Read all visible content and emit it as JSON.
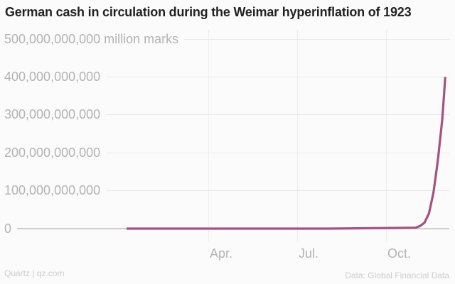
{
  "title": "German cash in circulation during the Weimar hyperinflation of 1923",
  "footer": {
    "left": "Quartz | qz.com",
    "right": "Data: Global Financial Data"
  },
  "colors": {
    "background": "#fbfbfb",
    "title": "#222222",
    "axis_label": "#b3b3b3",
    "gridline": "#e9e9e9",
    "vertical_gridline": "#eeeeee",
    "zero_line": "#cdcdcd",
    "series_line": "#a4527e",
    "footer_text": "#cccccc"
  },
  "chart_data": {
    "type": "line",
    "title": "German cash in circulation during the Weimar hyperinflation of 1923",
    "unit": "million marks",
    "x_range": "Jan 1923 - Dec 1923",
    "grid": true,
    "legend": "none",
    "y_axis": {
      "min": 0,
      "max": 500000000000,
      "tick_labels": [
        "500,000,000,000 million marks",
        "400,000,000,000",
        "300,000,000,000",
        "200,000,000,000",
        "100,000,000,000",
        "0"
      ],
      "tick_values": [
        500000000000,
        400000000000,
        300000000000,
        200000000000,
        100000000000,
        0
      ]
    },
    "x_axis": {
      "tick_labels": [
        "Apr.",
        "Jul.",
        "Oct."
      ],
      "tick_month_index": [
        3,
        6,
        9
      ]
    },
    "monthly_values_approx_million_marks": {
      "note": "read from chart; Jan-Oct are indistinguishable from 0 at this axis scale, curve spikes to ~400,000,000,000 by end of November 1923",
      "Jan": 2000000,
      "Feb": 3500000,
      "Mar": 5500000,
      "Apr": 6500000,
      "May": 8600000,
      "Jun": 17000000,
      "Jul": 44000000,
      "Aug": 670000000,
      "Sep": 1500000000,
      "Oct": 2500000000,
      "Nov": 400000000000
    },
    "series": [
      {
        "name": "Cash in circulation (million marks)",
        "points_month_offset_value": [
          [
            0.24,
            1300000
          ],
          [
            1,
            2000000
          ],
          [
            2,
            3500000
          ],
          [
            3,
            5500000
          ],
          [
            4,
            6500000
          ],
          [
            5,
            8600000
          ],
          [
            6,
            17000000
          ],
          [
            7,
            44000000
          ],
          [
            8,
            670000000
          ],
          [
            9,
            1500000000
          ],
          [
            10,
            2500000000
          ],
          [
            10.15,
            7000000000
          ],
          [
            10.3,
            16000000000
          ],
          [
            10.45,
            40000000000
          ],
          [
            10.6,
            95000000000
          ],
          [
            10.75,
            180000000000
          ],
          [
            10.9,
            290000000000
          ],
          [
            11,
            400000000000
          ]
        ]
      }
    ]
  }
}
